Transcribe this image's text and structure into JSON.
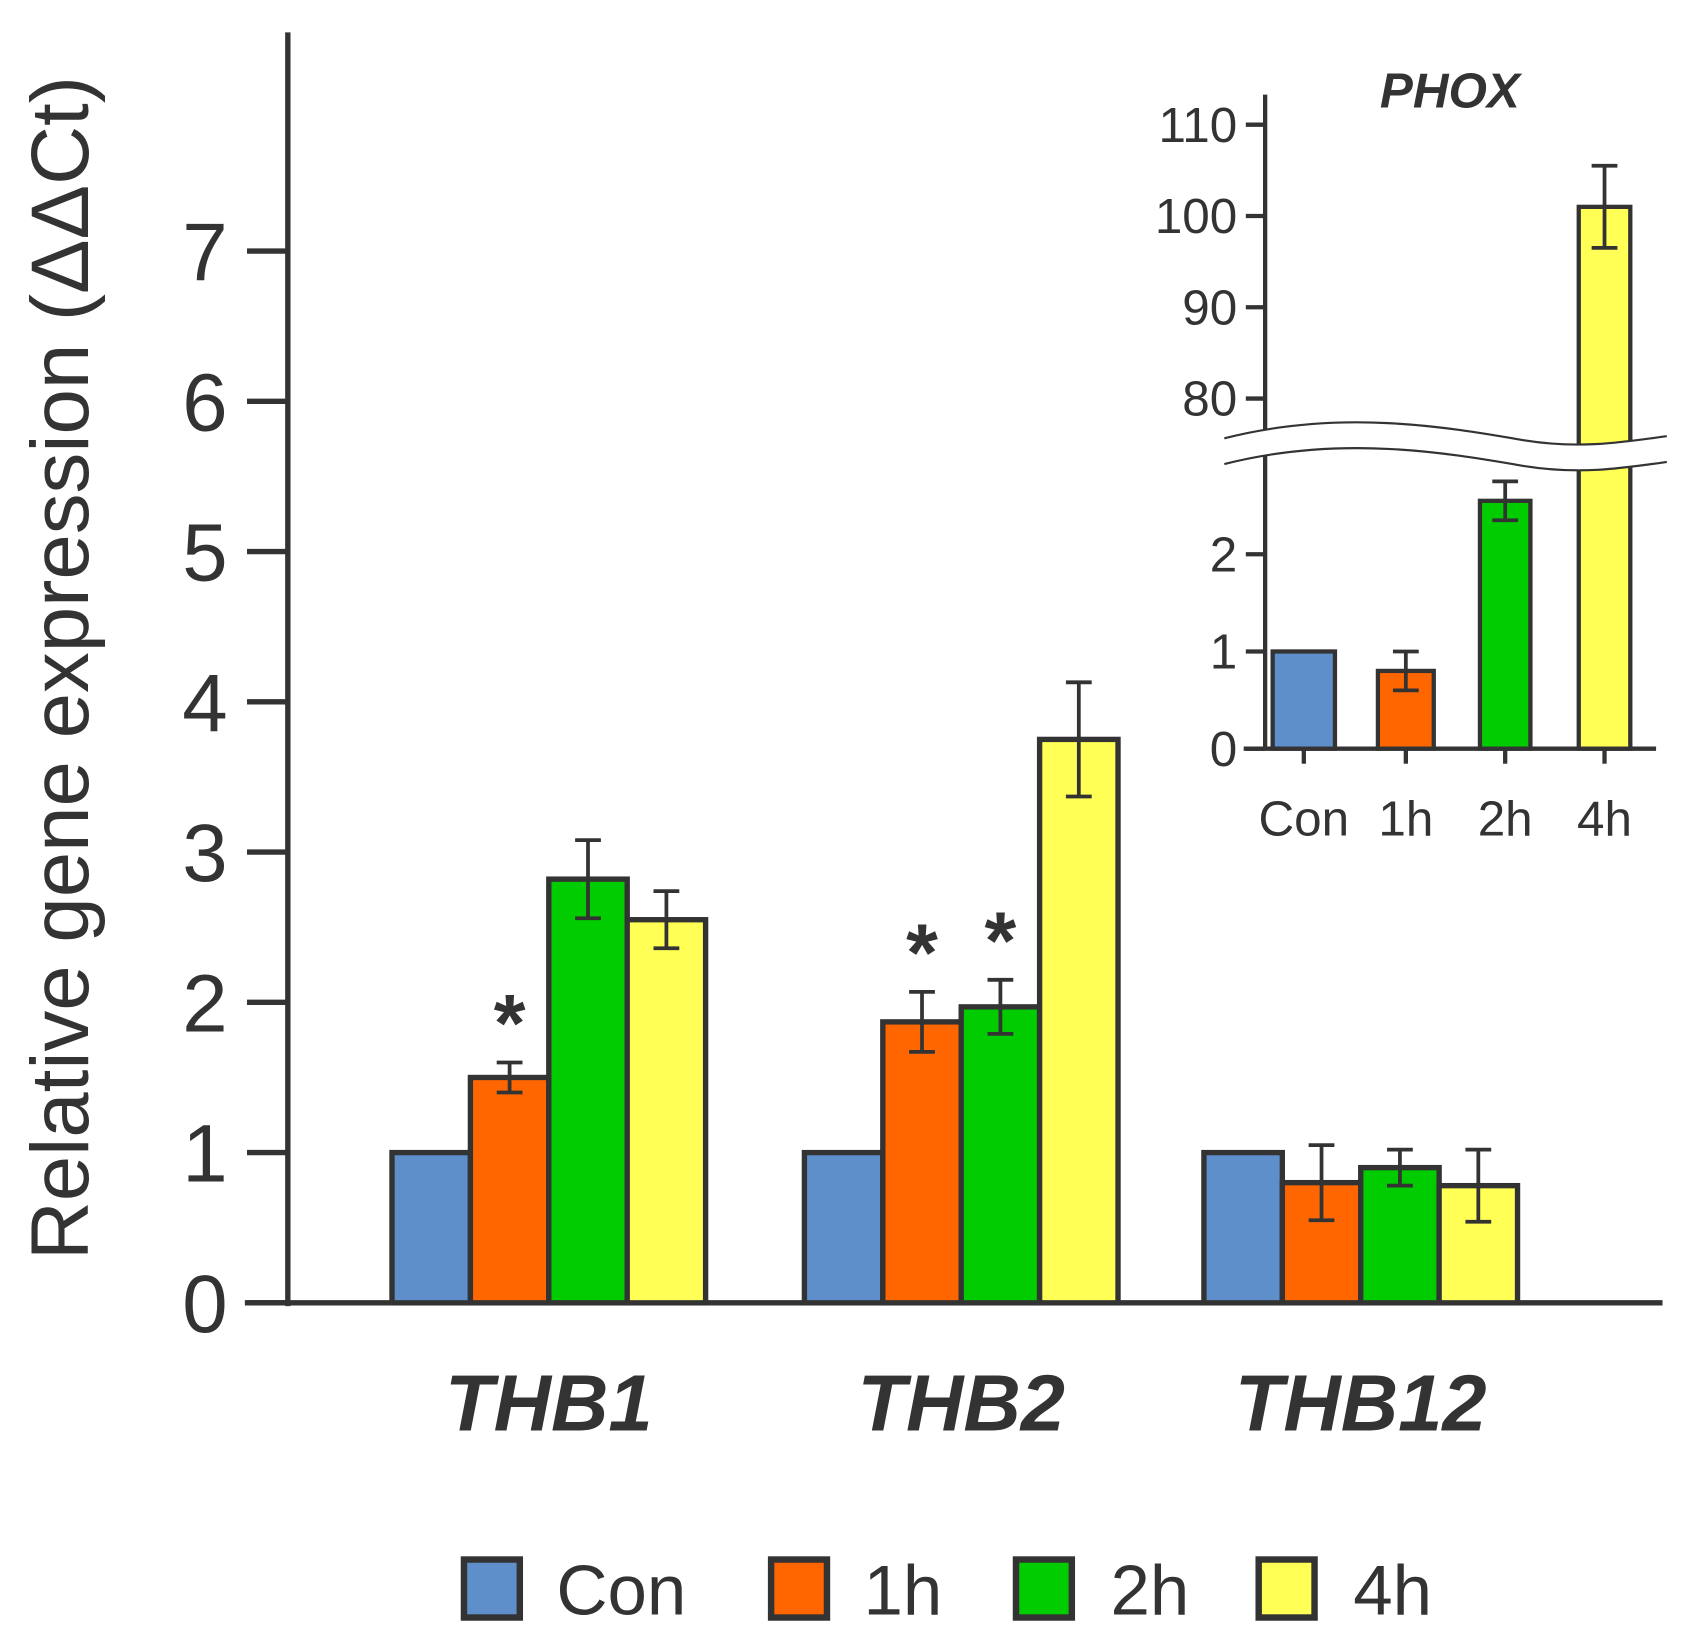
{
  "chart_data": [
    {
      "type": "bar",
      "title": "",
      "xlabel": "",
      "ylabel": "Relative gene expression (ΔΔCt)",
      "ylim": [
        0,
        8
      ],
      "yticks": [
        0,
        1,
        2,
        3,
        4,
        5,
        6,
        7
      ],
      "categories": [
        "THB1",
        "THB2",
        "THB12"
      ],
      "series": [
        {
          "name": "Con",
          "color": "#5f8fcb",
          "values": [
            1,
            1,
            1
          ],
          "errors": [
            0,
            0,
            0
          ],
          "significant": [
            false,
            false,
            false
          ]
        },
        {
          "name": "1h",
          "color": "#ff6600",
          "values": [
            1.5,
            1.87,
            0.8
          ],
          "errors": [
            0.1,
            0.2,
            0.25
          ],
          "significant": [
            true,
            true,
            false
          ]
        },
        {
          "name": "2h",
          "color": "#00cc00",
          "values": [
            2.82,
            1.97,
            0.9
          ],
          "errors": [
            0.26,
            0.18,
            0.12
          ],
          "significant": [
            false,
            true,
            false
          ]
        },
        {
          "name": "4h",
          "color": "#ffff55",
          "values": [
            2.55,
            3.75,
            0.78
          ],
          "errors": [
            0.19,
            0.38,
            0.24
          ],
          "significant": [
            false,
            false,
            false
          ]
        }
      ],
      "significance_marker": "*",
      "legend": {
        "placement": "bottom",
        "entries": [
          "Con",
          "1h",
          "2h",
          "4h"
        ]
      }
    },
    {
      "type": "bar",
      "title": "PHOX",
      "placement": "inset top-right",
      "axis_break": [
        3,
        75
      ],
      "yticks_lower": [
        0,
        1,
        2
      ],
      "yticks_upper": [
        80,
        90,
        100,
        110
      ],
      "categories": [
        "Con",
        "1h",
        "2h",
        "4h"
      ],
      "colors": [
        "#5f8fcb",
        "#ff6600",
        "#00cc00",
        "#ffff55"
      ],
      "values": [
        1,
        0.8,
        2.55,
        101
      ],
      "errors": [
        0,
        0.2,
        0.2,
        4.5
      ]
    }
  ]
}
